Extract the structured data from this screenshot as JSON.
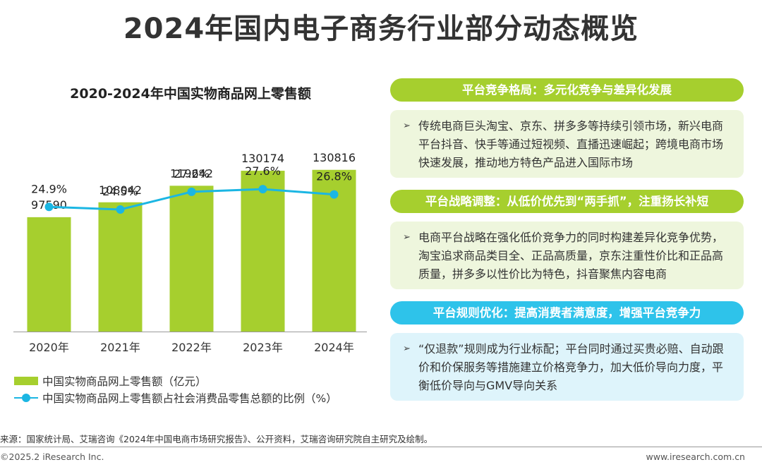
{
  "page": {
    "title": "2024年国内电子商务行业部分动态概览"
  },
  "chart_data": {
    "type": "bar",
    "title": "2020-2024年中国实物商品网上零售额",
    "categories": [
      "2020年",
      "2021年",
      "2022年",
      "2023年",
      "2024年"
    ],
    "series": [
      {
        "name": "中国实物商品网上零售额（亿元）",
        "type": "bar",
        "values": [
          97590,
          108042,
          119642,
          130174,
          130816
        ],
        "labels": [
          "97590",
          "108042",
          "119642",
          "130174",
          "130816"
        ],
        "color": "#a6cf2e"
      },
      {
        "name": "中国实物商品网上零售额占社会消费品零售总额的比例（%）",
        "type": "line",
        "values": [
          24.9,
          24.5,
          27.2,
          27.6,
          26.8
        ],
        "labels": [
          "24.9%",
          "24.5%",
          "27.2%",
          "27.6%",
          "26.8%"
        ],
        "color": "#1bb6e3"
      }
    ],
    "grid": false,
    "legend": "bottom-left"
  },
  "sections": [
    {
      "heading": "平台竞争格局：多元化竞争与差异化发展",
      "bullet": "➢",
      "text": "传统电商巨头淘宝、京东、拼多多等持续引领市场，新兴电商平台抖音、快手等通过短视频、直播迅速崛起；跨境电商市场快速发展，推动地方特色产品进入国际市场"
    },
    {
      "heading": "平台战略调整：从低价优先到“两手抓”，注重扬长补短",
      "bullet": "➢",
      "text": "电商平台战略在强化低价竞争力的同时构建差异化竞争优势，淘宝追求商品类目全、正品高质量，京东注重性价比和正品高质量，拼多多以性价比为特色，抖音聚焦内容电商"
    },
    {
      "heading": "平台规则优化：提高消费者满意度，增强平台竞争力",
      "bullet": "➢",
      "text": "“仅退款”规则成为行业标配；平台同时通过买贵必赔、自动跟价和价保服务等措施建立价格竞争力，加大低价导向力度，平衡低价导向与GMV导向关系"
    }
  ],
  "footer": {
    "source": "来源：国家统计局、艾瑞咨询《2024年中国电商市场研究报告》、公开资料，艾瑞咨询研究院自主研究及绘制。",
    "copyright": "©2025.2 iResearch Inc.",
    "website": "www.iresearch.com.cn"
  }
}
